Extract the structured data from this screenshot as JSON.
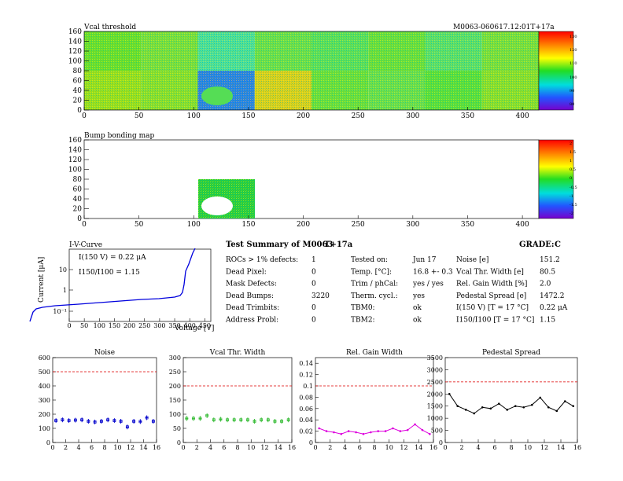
{
  "header": {
    "module_id": "M0063-060617.12:01T+17a"
  },
  "vcal_map": {
    "title": "Vcal threshold",
    "x_ticks": [
      "0",
      "50",
      "100",
      "150",
      "200",
      "250",
      "300",
      "350",
      "400"
    ],
    "y_ticks": [
      "0",
      "20",
      "40",
      "60",
      "80",
      "100",
      "120",
      "140",
      "160"
    ],
    "palette_labels": [
      "130",
      "120",
      "110",
      "100",
      "90",
      "80"
    ]
  },
  "bump_map": {
    "title": "Bump bonding map",
    "x_ticks": [
      "0",
      "50",
      "100",
      "150",
      "200",
      "250",
      "300",
      "350",
      "400"
    ],
    "y_ticks": [
      "0",
      "20",
      "40",
      "60",
      "80",
      "100",
      "120",
      "140",
      "160"
    ],
    "palette_labels": [
      "2",
      "1.5",
      "1",
      "0.5",
      "0",
      "-0.5",
      "-1",
      "-1.5",
      "-2"
    ]
  },
  "iv_curve": {
    "title": "I-V-Curve",
    "ylabel": "Current [μA]",
    "xlabel": "Voltage [V]",
    "annotation_current": "I(150 V) = 0.22 μA",
    "annotation_ratio": "I150/I100 = 1.15",
    "x_ticks": [
      "0",
      "50",
      "100",
      "150",
      "200",
      "250",
      "300",
      "350",
      "400",
      "450"
    ],
    "y_ticks": [
      "10⁻¹",
      "1",
      "10"
    ]
  },
  "summary": {
    "title": "Test Summary of M0063",
    "tag": "T+17a",
    "grade_label": "GRADE:",
    "grade": "C",
    "col1": [
      {
        "label": "ROCs > 1% defects:",
        "value": "1"
      },
      {
        "label": "Dead Pixel:",
        "value": "0"
      },
      {
        "label": "Mask Defects:",
        "value": "0"
      },
      {
        "label": "Dead Bumps:",
        "value": "3220"
      },
      {
        "label": "Dead Trimbits:",
        "value": "0"
      },
      {
        "label": "Address Probl:",
        "value": "0"
      }
    ],
    "col2": [
      {
        "label": "Tested on:",
        "value": "Jun 17"
      },
      {
        "label": "Temp. [°C]:",
        "value": "16.8 +- 0.3"
      },
      {
        "label": "Trim / phCal:",
        "value": "yes / yes"
      },
      {
        "label": "Therm. cycl.:",
        "value": "yes"
      },
      {
        "label": "TBM0:",
        "value": "ok"
      },
      {
        "label": "TBM2:",
        "value": "ok"
      }
    ],
    "col3": [
      {
        "label": "Noise [e]",
        "value": "151.2"
      },
      {
        "label": "Vcal Thr. Width [e]",
        "value": "80.5"
      },
      {
        "label": "Rel. Gain Width [%]",
        "value": "2.0"
      },
      {
        "label": "Pedestal Spread [e]",
        "value": "1472.2"
      },
      {
        "label": "I(150 V) [T = 17 °C]",
        "value": "0.22 μA"
      },
      {
        "label": "I150/I100   [T = 17 °C]",
        "value": "1.15"
      }
    ]
  },
  "chart_data": [
    {
      "type": "scatter",
      "title": "Noise",
      "color": "#0000cc",
      "x": [
        0,
        1,
        2,
        3,
        4,
        5,
        6,
        7,
        8,
        9,
        10,
        11,
        12,
        13,
        14,
        15
      ],
      "values": [
        155,
        160,
        155,
        158,
        160,
        150,
        145,
        150,
        160,
        155,
        150,
        110,
        150,
        148,
        175,
        150
      ],
      "limit": 500,
      "ylim": [
        0,
        600
      ],
      "xlim": [
        0,
        16
      ],
      "y_ticks": [
        "0",
        "100",
        "200",
        "300",
        "400",
        "500",
        "600"
      ],
      "x_ticks": [
        "0",
        "2",
        "4",
        "6",
        "8",
        "10",
        "12",
        "14",
        "16"
      ]
    },
    {
      "type": "scatter",
      "title": "Vcal Thr. Width",
      "color": "#33bb33",
      "x": [
        0,
        1,
        2,
        3,
        4,
        5,
        6,
        7,
        8,
        9,
        10,
        11,
        12,
        13,
        14,
        15
      ],
      "values": [
        85,
        85,
        85,
        95,
        80,
        82,
        80,
        80,
        80,
        80,
        75,
        80,
        80,
        75,
        75,
        80
      ],
      "limit": 200,
      "ylim": [
        0,
        300
      ],
      "xlim": [
        0,
        16
      ],
      "y_ticks": [
        "0",
        "50",
        "100",
        "150",
        "200",
        "250",
        "300"
      ],
      "x_ticks": [
        "0",
        "2",
        "4",
        "6",
        "8",
        "10",
        "12",
        "14",
        "16"
      ]
    },
    {
      "type": "line",
      "title": "Rel. Gain Width",
      "color": "#dd00dd",
      "x": [
        0,
        1,
        2,
        3,
        4,
        5,
        6,
        7,
        8,
        9,
        10,
        11,
        12,
        13,
        14,
        15
      ],
      "values": [
        0.025,
        0.02,
        0.018,
        0.015,
        0.02,
        0.018,
        0.015,
        0.018,
        0.02,
        0.02,
        0.025,
        0.02,
        0.022,
        0.032,
        0.022,
        0.015
      ],
      "limit": 0.1,
      "ylim": [
        0,
        0.15
      ],
      "xlim": [
        0,
        16
      ],
      "y_ticks": [
        "0",
        "0.02",
        "0.04",
        "0.06",
        "0.08",
        "0.1",
        "0.12",
        "0.14"
      ],
      "x_ticks": [
        "0",
        "2",
        "4",
        "6",
        "8",
        "10",
        "12",
        "14",
        "16"
      ]
    },
    {
      "type": "line",
      "title": "Pedestal Spread",
      "color": "#000000",
      "x": [
        0,
        1,
        2,
        3,
        4,
        5,
        6,
        7,
        8,
        9,
        10,
        11,
        12,
        13,
        14,
        15
      ],
      "values": [
        2000,
        1500,
        1350,
        1200,
        1450,
        1400,
        1600,
        1350,
        1500,
        1450,
        1550,
        1850,
        1450,
        1300,
        1700,
        1500
      ],
      "limit": 2500,
      "ylim": [
        0,
        3500
      ],
      "xlim": [
        0,
        16
      ],
      "y_ticks": [
        "0",
        "500",
        "1000",
        "1500",
        "2000",
        "2500",
        "3000",
        "3500"
      ],
      "x_ticks": [
        "0",
        "2",
        "4",
        "6",
        "8",
        "10",
        "12",
        "14",
        "16"
      ]
    }
  ]
}
